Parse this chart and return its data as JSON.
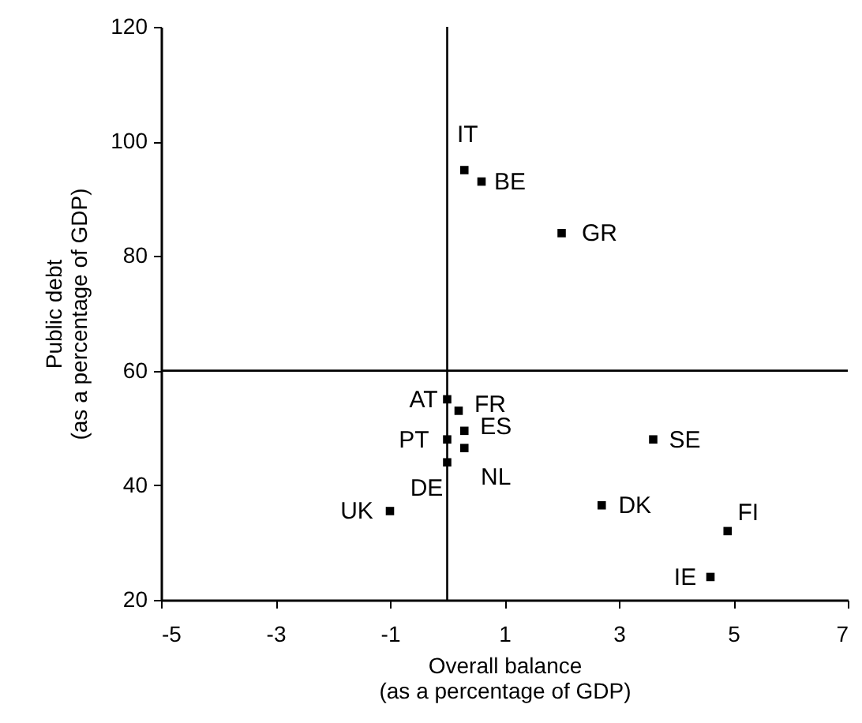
{
  "chart_data": {
    "type": "scatter",
    "xlabel": "Overall balance\n(as a percentage of GDP)",
    "ylabel": "Public debt\n(as a percentage of GDP)",
    "x": [
      0.3,
      0.6,
      2.0,
      0,
      0.2,
      0.3,
      0,
      0.3,
      0,
      -1.0,
      3.6,
      2.7,
      4.9,
      4.6
    ],
    "series": [
      {
        "color": "#000000",
        "values": [
          95,
          93,
          84,
          55,
          53,
          49.5,
          48,
          46.5,
          44,
          35.5,
          48,
          36.5,
          32,
          24
        ]
      }
    ],
    "annotations": [
      {
        "text": "IT",
        "x": 0.3,
        "y": 95
      },
      {
        "text": "BE",
        "x": 0.6,
        "y": 93
      },
      {
        "text": "GR",
        "x": 2.0,
        "y": 84
      },
      {
        "text": "AT",
        "x": 0,
        "y": 55
      },
      {
        "text": "FR",
        "x": 0.2,
        "y": 53
      },
      {
        "text": "ES",
        "x": 0.3,
        "y": 49.5
      },
      {
        "text": "PT",
        "x": 0,
        "y": 48
      },
      {
        "text": "NL",
        "x": 0.3,
        "y": 46.5
      },
      {
        "text": "DE",
        "x": 0,
        "y": 44
      },
      {
        "text": "UK",
        "x": -1.0,
        "y": 35.5
      },
      {
        "text": "SE",
        "x": 3.6,
        "y": 48
      },
      {
        "text": "DK",
        "x": 2.7,
        "y": 36.5
      },
      {
        "text": "FI",
        "x": 4.9,
        "y": 32
      },
      {
        "text": "IE",
        "x": 4.6,
        "y": 24
      }
    ],
    "xlim": [
      -5,
      7
    ],
    "xticks": [
      -5,
      -3,
      -1,
      1,
      3,
      5,
      7
    ],
    "ylim": [
      20,
      120
    ],
    "yticks": [
      20,
      40,
      60,
      80,
      100,
      120
    ],
    "ref_lines": [
      {
        "axis": "x",
        "value": 0
      },
      {
        "axis": "y",
        "value": 60
      }
    ],
    "marker": "square",
    "grid": false
  }
}
